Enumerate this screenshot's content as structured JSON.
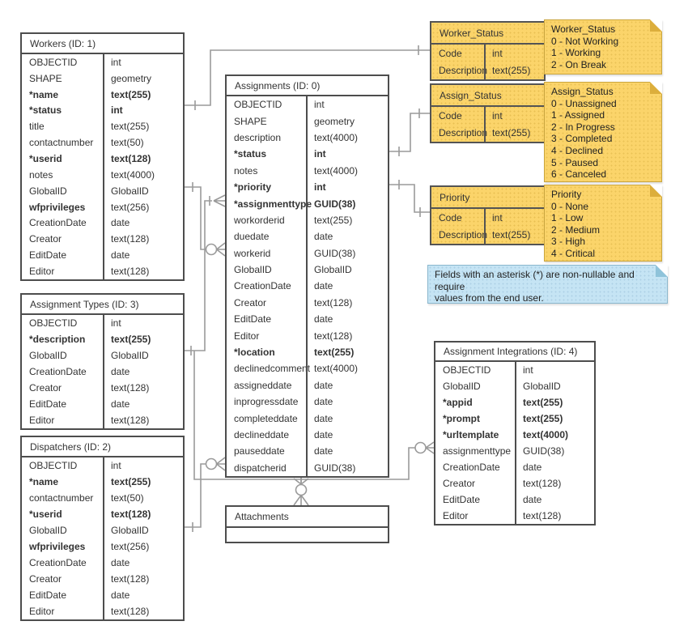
{
  "colors": {
    "entity_fill": "#ffffff",
    "entity_border": "#4d4d4d",
    "lookup_fill": "#fbd46a",
    "note_yellow": "#fbd46a",
    "note_blue": "#c5e4f4",
    "connector": "#999999",
    "text": "#333333"
  },
  "tables": {
    "workers": {
      "title": "Workers (ID: 1)",
      "fields": [
        {
          "name": "OBJECTID",
          "type": "int"
        },
        {
          "name": "SHAPE",
          "type": "geometry"
        },
        {
          "name": "*name",
          "type": "text(255)",
          "b": "both"
        },
        {
          "name": "*status",
          "type": "int",
          "b": "both"
        },
        {
          "name": "title",
          "type": "text(255)"
        },
        {
          "name": "contactnumber",
          "type": "text(50)"
        },
        {
          "name": "*userid",
          "type": "text(128)",
          "b": "both"
        },
        {
          "name": "notes",
          "type": "text(4000)"
        },
        {
          "name": "GlobalID",
          "type": "GlobalID"
        },
        {
          "name": "wfprivileges",
          "type": "text(256)",
          "b": "name"
        },
        {
          "name": "CreationDate",
          "type": "date"
        },
        {
          "name": "Creator",
          "type": "text(128)"
        },
        {
          "name": "EditDate",
          "type": "date"
        },
        {
          "name": "Editor",
          "type": "text(128)"
        }
      ]
    },
    "assignment_types": {
      "title": "Assignment Types (ID: 3)",
      "fields": [
        {
          "name": "OBJECTID",
          "type": "int"
        },
        {
          "name": "*description",
          "type": "text(255)",
          "b": "both"
        },
        {
          "name": "GlobalID",
          "type": "GlobalID"
        },
        {
          "name": "CreationDate",
          "type": "date"
        },
        {
          "name": "Creator",
          "type": "text(128)"
        },
        {
          "name": "EditDate",
          "type": "date"
        },
        {
          "name": "Editor",
          "type": "text(128)"
        }
      ]
    },
    "dispatchers": {
      "title": "Dispatchers (ID: 2)",
      "fields": [
        {
          "name": "OBJECTID",
          "type": "int"
        },
        {
          "name": "*name",
          "type": "text(255)",
          "b": "both"
        },
        {
          "name": "contactnumber",
          "type": "text(50)"
        },
        {
          "name": "*userid",
          "type": "text(128)",
          "b": "both"
        },
        {
          "name": "GlobalID",
          "type": "GlobalID"
        },
        {
          "name": "wfprivileges",
          "type": "text(256)",
          "b": "name"
        },
        {
          "name": "CreationDate",
          "type": "date"
        },
        {
          "name": "Creator",
          "type": "text(128)"
        },
        {
          "name": "EditDate",
          "type": "date"
        },
        {
          "name": "Editor",
          "type": "text(128)"
        }
      ]
    },
    "assignments": {
      "title": "Assignments (ID: 0)",
      "fields": [
        {
          "name": "OBJECTID",
          "type": "int"
        },
        {
          "name": "SHAPE",
          "type": "geometry"
        },
        {
          "name": "description",
          "type": "text(4000)"
        },
        {
          "name": "*status",
          "type": "int",
          "b": "both"
        },
        {
          "name": "notes",
          "type": "text(4000)"
        },
        {
          "name": "*priority",
          "type": "int",
          "b": "both"
        },
        {
          "name": "*assignmenttype",
          "type": "GUID(38)",
          "b": "both"
        },
        {
          "name": "workorderid",
          "type": "text(255)"
        },
        {
          "name": "duedate",
          "type": "date"
        },
        {
          "name": "workerid",
          "type": "GUID(38)"
        },
        {
          "name": "GlobalID",
          "type": "GlobalID"
        },
        {
          "name": "CreationDate",
          "type": "date"
        },
        {
          "name": "Creator",
          "type": "text(128)"
        },
        {
          "name": "EditDate",
          "type": "date"
        },
        {
          "name": "Editor",
          "type": "text(128)"
        },
        {
          "name": "*location",
          "type": "text(255)",
          "b": "both"
        },
        {
          "name": "declinedcomment",
          "type": "text(4000)"
        },
        {
          "name": "assigneddate",
          "type": "date"
        },
        {
          "name": "inprogressdate",
          "type": "date"
        },
        {
          "name": "completeddate",
          "type": "date"
        },
        {
          "name": "declineddate",
          "type": "date"
        },
        {
          "name": "pauseddate",
          "type": "date"
        },
        {
          "name": "dispatcherid",
          "type": "GUID(38)"
        }
      ]
    },
    "worker_status": {
      "title": "Worker_Status",
      "fields": [
        {
          "name": "Code",
          "type": "int"
        },
        {
          "name": "Description",
          "type": "text(255)"
        }
      ]
    },
    "assign_status": {
      "title": "Assign_Status",
      "fields": [
        {
          "name": "Code",
          "type": "int"
        },
        {
          "name": "Description",
          "type": "text(255)"
        }
      ]
    },
    "priority": {
      "title": "Priority",
      "fields": [
        {
          "name": "Code",
          "type": "int"
        },
        {
          "name": "Description",
          "type": "text(255)"
        }
      ]
    },
    "assignment_integrations": {
      "title": "Assignment Integrations (ID: 4)",
      "fields": [
        {
          "name": "OBJECTID",
          "type": "int"
        },
        {
          "name": "GlobalID",
          "type": "GlobalID"
        },
        {
          "name": "*appid",
          "type": "text(255)",
          "b": "both"
        },
        {
          "name": "*prompt",
          "type": "text(255)",
          "b": "both"
        },
        {
          "name": "*urltemplate",
          "type": "text(4000)",
          "b": "both"
        },
        {
          "name": "assignmenttype",
          "type": "GUID(38)"
        },
        {
          "name": "CreationDate",
          "type": "date"
        },
        {
          "name": "Creator",
          "type": "text(128)"
        },
        {
          "name": "EditDate",
          "type": "date"
        },
        {
          "name": "Editor",
          "type": "text(128)"
        }
      ]
    },
    "attachments": {
      "title": "Attachments",
      "fields": []
    }
  },
  "notes": {
    "worker_status_note": {
      "lines": [
        "Worker_Status",
        "0 - Not Working",
        "1 - Working",
        "2 - On Break"
      ]
    },
    "assign_status_note": {
      "lines": [
        "Assign_Status",
        "0 - Unassigned",
        "1 - Assigned",
        "2 - In Progress",
        "3 - Completed",
        "4 - Declined",
        "5 - Paused",
        "6 - Canceled"
      ]
    },
    "priority_note": {
      "lines": [
        "Priority",
        "0 - None",
        "1 - Low",
        "2 - Medium",
        "3 - High",
        "4 - Critical"
      ]
    },
    "asterisk_note": {
      "lines": [
        "Fields with an asterisk (*) are non-nullable and require",
        "values from the end user."
      ]
    }
  },
  "relationships": [
    {
      "from": "Workers.status",
      "to": "Worker_Status.Code",
      "from_end": "one",
      "to_end": "one"
    },
    {
      "from": "Assignments.workerid",
      "to": "Workers.GlobalID",
      "from_end": "zero-or-many",
      "to_end": "one"
    },
    {
      "from": "Assignments.assignmenttype",
      "to": "Assignment Types.GlobalID",
      "from_end": "one-or-many",
      "to_end": "one"
    },
    {
      "from": "Assignments.dispatcherid",
      "to": "Dispatchers.GlobalID",
      "from_end": "zero-or-many",
      "to_end": "one"
    },
    {
      "from": "Assignments.status",
      "to": "Assign_Status.Code",
      "from_end": "one",
      "to_end": "one"
    },
    {
      "from": "Assignments.priority",
      "to": "Priority.Code",
      "from_end": "one",
      "to_end": "one"
    },
    {
      "from": "Assignment Integrations.assignmenttype",
      "to": "Assignment Types.GlobalID",
      "from_end": "zero-or-many",
      "to_end": "one"
    },
    {
      "from": "Attachments",
      "to": "Assignments",
      "from_end": "zero-or-many",
      "to_end": "many"
    }
  ]
}
